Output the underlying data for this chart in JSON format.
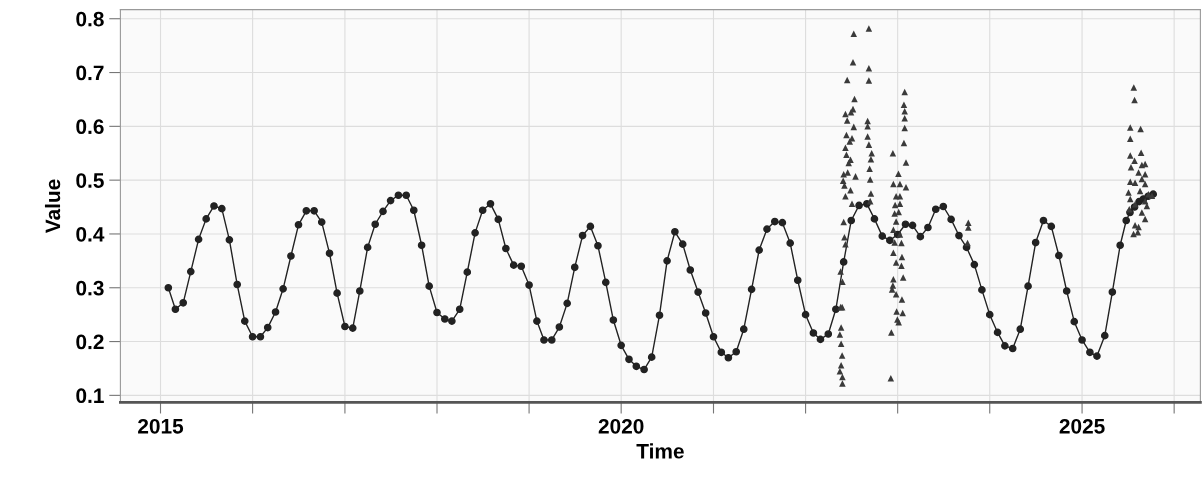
{
  "chart_data": {
    "type": "line",
    "xlabel": "Time",
    "ylabel": "Value",
    "xlim": [
      "2014-07-26",
      "2026-04-15"
    ],
    "ylim": [
      0.087,
      0.817
    ],
    "xticks": [
      "2015",
      {
        "value": "2016",
        "label": null
      },
      {
        "value": "2017",
        "label": null
      },
      {
        "value": "2018",
        "label": null
      },
      {
        "value": "2019",
        "label": null
      },
      "2020",
      {
        "value": "2021",
        "label": null
      },
      {
        "value": "2022",
        "label": null
      },
      {
        "value": "2023",
        "label": null
      },
      {
        "value": "2024",
        "label": null
      },
      "2025",
      {
        "value": "2026",
        "label": null
      }
    ],
    "yticks": [
      0.1,
      0.2,
      0.3,
      0.4,
      0.5,
      0.6,
      0.7,
      0.8
    ],
    "grid": true,
    "series": [
      {
        "marker": "circle",
        "line_style": "solid",
        "color": "#222222",
        "x": [
          "2015-02",
          "2015-03",
          "2015-04",
          "2015-05",
          "2015-06",
          "2015-07",
          "2015-08",
          "2015-09",
          "2015-10",
          "2015-11",
          "2015-12",
          "2016-01",
          "2016-02",
          "2016-03",
          "2016-04",
          "2016-05",
          "2016-06",
          "2016-07",
          "2016-08",
          "2016-09",
          "2016-10",
          "2016-11",
          "2016-12",
          "2017-01",
          "2017-02",
          "2017-03",
          "2017-04",
          "2017-05",
          "2017-06",
          "2017-07",
          "2017-08",
          "2017-09",
          "2017-10",
          "2017-11",
          "2017-12",
          "2018-01",
          "2018-02",
          "2018-03",
          "2018-04",
          "2018-05",
          "2018-06",
          "2018-07",
          "2018-08",
          "2018-09",
          "2018-10",
          "2018-11",
          "2018-12",
          "2019-01",
          "2019-02",
          "2019-03",
          "2019-04",
          "2019-05",
          "2019-06",
          "2019-07",
          "2019-08",
          "2019-09",
          "2019-10",
          "2019-11",
          "2019-12",
          "2020-01",
          "2020-02",
          "2020-03",
          "2020-04",
          "2020-05",
          "2020-06",
          "2020-07",
          "2020-08",
          "2020-09",
          "2020-10",
          "2020-11",
          "2020-12",
          "2021-01",
          "2021-02",
          "2021-03",
          "2021-04",
          "2021-05",
          "2021-06",
          "2021-07",
          "2021-08",
          "2021-09",
          "2021-10",
          "2021-11",
          "2021-12",
          "2022-01",
          "2022-02",
          "2022-03",
          "2022-04",
          "2022-05",
          "2022-06",
          "2022-07",
          "2022-08",
          "2022-09",
          "2022-10",
          "2022-11",
          "2022-12",
          "2023-01",
          "2023-02",
          "2023-03",
          "2023-04",
          "2023-05",
          "2023-06",
          "2023-07",
          "2023-08",
          "2023-09",
          "2023-10",
          "2023-11",
          "2023-12",
          "2024-01",
          "2024-02",
          "2024-03",
          "2024-04",
          "2024-05",
          "2024-06",
          "2024-07",
          "2024-08",
          "2024-09",
          "2024-10",
          "2024-11",
          "2024-12",
          "2025-01",
          "2025-02",
          "2025-03",
          "2025-04",
          "2025-05",
          "2025-06",
          "2025-06-25",
          "2025-07-10",
          "2025-07-28",
          "2025-08-15",
          "2025-09-01",
          "2025-09-20",
          "2025-10-10"
        ],
        "values": [
          0.3,
          0.26,
          0.272,
          0.33,
          0.39,
          0.428,
          0.452,
          0.447,
          0.389,
          0.306,
          0.238,
          0.209,
          0.209,
          0.226,
          0.255,
          0.298,
          0.359,
          0.417,
          0.443,
          0.443,
          0.422,
          0.364,
          0.29,
          0.228,
          0.225,
          0.294,
          0.375,
          0.418,
          0.442,
          0.462,
          0.472,
          0.472,
          0.444,
          0.379,
          0.303,
          0.254,
          0.242,
          0.238,
          0.26,
          0.329,
          0.402,
          0.444,
          0.456,
          0.427,
          0.373,
          0.342,
          0.34,
          0.305,
          0.238,
          0.203,
          0.203,
          0.227,
          0.271,
          0.338,
          0.397,
          0.414,
          0.378,
          0.31,
          0.24,
          0.193,
          0.167,
          0.154,
          0.148,
          0.171,
          0.249,
          0.35,
          0.404,
          0.381,
          0.333,
          0.292,
          0.253,
          0.209,
          0.18,
          0.17,
          0.181,
          0.223,
          0.297,
          0.37,
          0.409,
          0.423,
          0.421,
          0.383,
          0.314,
          0.25,
          0.216,
          0.204,
          0.214,
          0.26,
          0.348,
          0.425,
          0.453,
          0.456,
          0.428,
          0.396,
          0.388,
          0.399,
          0.418,
          0.416,
          0.395,
          0.412,
          0.446,
          0.451,
          0.427,
          0.397,
          0.375,
          0.343,
          0.296,
          0.25,
          0.217,
          0.192,
          0.187,
          0.223,
          0.303,
          0.384,
          0.425,
          0.414,
          0.36,
          0.294,
          0.237,
          0.203,
          0.18,
          0.173,
          0.211,
          0.292,
          0.379,
          0.425,
          0.44,
          0.45,
          0.46,
          0.465,
          0.47,
          0.474
        ]
      },
      {
        "type": "scatter",
        "marker": "triangle",
        "color": "#3a3a3a",
        "x": [
          "2022-07-11",
          "2022-07-08",
          "2022-06-15",
          "2022-07-14",
          "2022-07-08",
          "2022-06-30",
          "2022-06-08",
          "2022-06-15",
          "2022-07-11",
          "2022-06-12",
          "2022-07-04",
          "2022-06-25",
          "2022-06-08",
          "2022-06-12",
          "2022-06-28",
          "2022-06-21",
          "2022-06-01",
          "2022-07-18",
          "2022-06-17",
          "2022-05-30",
          "2022-06-04",
          "2022-06-28",
          "2022-06-08",
          "2022-07-04",
          "2022-06-01",
          "2022-06-04",
          "2022-06-08",
          "2022-05-20",
          "2022-05-27",
          "2022-05-20",
          "2022-05-26",
          "2022-05-22",
          "2022-05-17",
          "2022-05-22",
          "2022-05-26",
          "2022-05-22",
          "2022-05-17",
          "2022-05-27",
          "2022-05-27",
          "2022-09-09",
          "2022-09-09",
          "2022-09-09",
          "2022-09-04",
          "2022-09-04",
          "2022-09-04",
          "2022-09-09",
          "2022-09-20",
          "2022-09-17",
          "2022-09-12",
          "2022-09-14",
          "2022-09-17",
          "2022-09-14",
          "2023-01-29",
          "2023-01-26",
          "2023-01-29",
          "2023-01-29",
          "2023-01-29",
          "2023-01-26",
          "2022-12-13",
          "2023-02-03",
          "2023-01-04",
          "2022-12-15",
          "2023-01-10",
          "2023-02-03",
          "2022-12-26",
          "2023-01-10",
          "2022-12-22",
          "2023-01-10",
          "2022-12-20",
          "2023-01-05",
          "2022-12-26",
          "2022-12-15",
          "2023-01-10",
          "2022-12-20",
          "2023-01-16",
          "2022-12-15",
          "2023-01-18",
          "2022-12-26",
          "2023-01-16",
          "2022-12-15",
          "2023-01-23",
          "2022-12-13",
          "2022-12-10",
          "2022-12-26",
          "2023-01-18",
          "2022-12-28",
          "2023-01-21",
          "2022-12-31",
          "2023-01-05",
          "2022-12-07",
          "2022-12-05",
          "2023-10-08",
          "2023-10-08",
          "2023-10-05",
          "2025-07-25",
          "2025-07-28",
          "2025-07-11",
          "2025-08-21",
          "2025-07-11",
          "2025-07-11",
          "2025-08-23",
          "2025-07-28",
          "2025-08-26",
          "2025-09-08",
          "2025-07-14",
          "2025-08-13",
          "2025-09-08",
          "2025-08-26",
          "2025-07-11",
          "2025-07-30",
          "2025-09-08",
          "2025-07-04",
          "2025-08-19",
          "2025-09-21",
          "2025-10-05",
          "2025-07-11",
          "2025-07-30",
          "2025-09-08",
          "2025-09-15",
          "2025-07-07",
          "2025-08-26",
          "2025-09-08",
          "2025-07-30",
          "2025-08-13",
          "2025-07-24",
          "2025-08-10"
        ],
        "values": [
          0.772,
          0.719,
          0.686,
          0.651,
          0.632,
          0.626,
          0.623,
          0.611,
          0.599,
          0.584,
          0.578,
          0.572,
          0.56,
          0.547,
          0.538,
          0.532,
          0.511,
          0.507,
          0.514,
          0.499,
          0.49,
          0.481,
          0.47,
          0.456,
          0.422,
          0.394,
          0.381,
          0.33,
          0.311,
          0.264,
          0.264,
          0.226,
          0.213,
          0.196,
          0.174,
          0.156,
          0.145,
          0.134,
          0.122,
          0.782,
          0.708,
          0.685,
          0.61,
          0.6,
          0.581,
          0.566,
          0.55,
          0.539,
          0.521,
          0.501,
          0.475,
          0.461,
          0.664,
          0.64,
          0.628,
          0.615,
          0.597,
          0.569,
          0.55,
          0.533,
          0.512,
          0.493,
          0.493,
          0.487,
          0.47,
          0.47,
          0.454,
          0.456,
          0.438,
          0.441,
          0.423,
          0.408,
          0.399,
          0.384,
          0.383,
          0.365,
          0.357,
          0.347,
          0.341,
          0.316,
          0.319,
          0.304,
          0.297,
          0.288,
          0.278,
          0.256,
          0.253,
          0.241,
          0.236,
          0.217,
          0.132,
          0.421,
          0.412,
          0.383,
          0.672,
          0.649,
          0.598,
          0.595,
          0.577,
          0.546,
          0.551,
          0.536,
          0.528,
          0.53,
          0.524,
          0.514,
          0.511,
          0.502,
          0.497,
          0.495,
          0.493,
          0.477,
          0.48,
          0.474,
          0.471,
          0.465,
          0.455,
          0.461,
          0.452,
          0.446,
          0.44,
          0.428,
          0.416,
          0.413,
          0.4,
          0.403
        ]
      }
    ]
  }
}
